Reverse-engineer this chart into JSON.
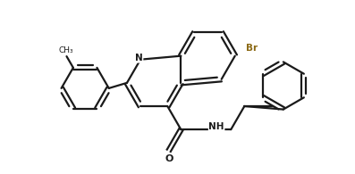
{
  "bg_color": "#ffffff",
  "line_color": "#1a1a1a",
  "br_color": "#8B6914",
  "label_color": "#1a1a1a",
  "line_width": 1.6,
  "figsize": [
    3.97,
    1.95
  ],
  "dpi": 100,
  "atoms": {
    "N_label": "N",
    "Br_label": "Br",
    "O_label": "O",
    "H_label": "H"
  }
}
